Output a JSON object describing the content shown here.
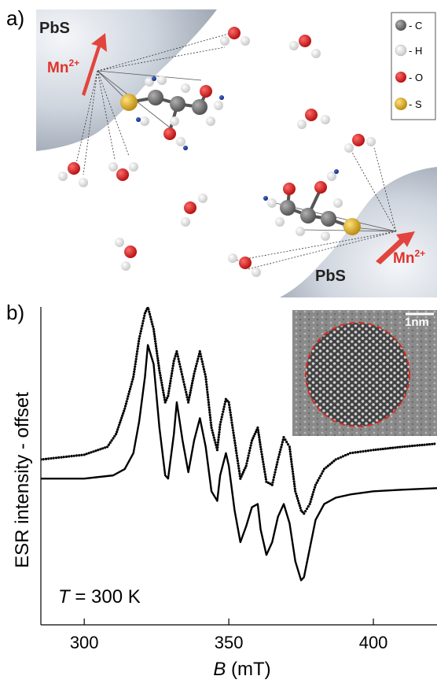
{
  "panel_labels": [
    "a)",
    "b)"
  ],
  "scene": {
    "surface_label_top": "PbS",
    "surface_label_bottom": "PbS",
    "ion_label": "Mn",
    "ion_charge": "2+",
    "legend": [
      {
        "symbol": "C",
        "label": "- C",
        "color": "#6e6e6e"
      },
      {
        "symbol": "H",
        "label": "- H",
        "color": "#f2f2f2"
      },
      {
        "symbol": "O",
        "label": "- O",
        "color": "#d81a1a"
      },
      {
        "symbol": "S",
        "label": "- S",
        "color": "#d8a61c"
      }
    ],
    "icons": [
      "water-molecule-icon",
      "mercaptopropionic-molecule-icon",
      "arrow-icon"
    ]
  },
  "chart_data": {
    "type": "line",
    "xlabel_italic": "B",
    "xlabel_unit": " (mT)",
    "ylabel": "ESR intensity - offset",
    "annotation_italic": "T",
    "annotation_rest": " = 300 K",
    "inset_scale_label": "1nm",
    "xlim": [
      285,
      422
    ],
    "x_ticks": [
      300,
      350,
      400
    ],
    "y_ticks_shown": false,
    "grid": false,
    "series": [
      {
        "style": "dotted",
        "x": [
          285,
          300,
          308,
          311,
          314,
          317,
          319,
          321,
          322,
          324,
          326,
          328,
          329,
          331,
          332,
          334,
          336,
          338,
          340,
          342,
          344,
          346,
          347,
          349,
          350,
          352,
          354,
          356,
          358,
          360,
          361,
          363,
          365,
          367,
          369,
          371,
          373,
          375,
          376,
          378,
          380,
          383,
          387,
          392,
          400,
          410,
          422
        ],
        "y": [
          0.52,
          0.535,
          0.56,
          0.6,
          0.68,
          0.78,
          0.9,
          0.98,
          1.0,
          0.93,
          0.8,
          0.7,
          0.72,
          0.83,
          0.86,
          0.78,
          0.7,
          0.79,
          0.86,
          0.78,
          0.62,
          0.55,
          0.63,
          0.71,
          0.7,
          0.58,
          0.46,
          0.5,
          0.58,
          0.62,
          0.56,
          0.45,
          0.44,
          0.52,
          0.59,
          0.56,
          0.42,
          0.36,
          0.35,
          0.38,
          0.44,
          0.49,
          0.52,
          0.54,
          0.55,
          0.56,
          0.57
        ]
      },
      {
        "style": "solid",
        "x": [
          285,
          300,
          310,
          314,
          317,
          319,
          321,
          322,
          324,
          326,
          328,
          329,
          331,
          332,
          334,
          336,
          338,
          340,
          342,
          344,
          346,
          347,
          349,
          350,
          352,
          354,
          356,
          358,
          360,
          361,
          363,
          365,
          367,
          369,
          371,
          373,
          375,
          376,
          378,
          380,
          383,
          387,
          392,
          400,
          410,
          422
        ],
        "y": [
          0.46,
          0.46,
          0.47,
          0.49,
          0.54,
          0.64,
          0.78,
          0.88,
          0.82,
          0.62,
          0.47,
          0.46,
          0.6,
          0.7,
          0.58,
          0.48,
          0.58,
          0.65,
          0.56,
          0.42,
          0.39,
          0.47,
          0.54,
          0.5,
          0.36,
          0.26,
          0.31,
          0.37,
          0.38,
          0.3,
          0.22,
          0.26,
          0.34,
          0.38,
          0.32,
          0.2,
          0.14,
          0.15,
          0.24,
          0.33,
          0.38,
          0.4,
          0.41,
          0.42,
          0.425,
          0.43
        ]
      }
    ]
  }
}
